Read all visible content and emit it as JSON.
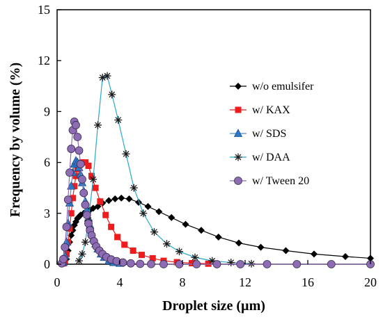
{
  "chart_data": {
    "type": "line",
    "xlabel": "Droplet size (µm)",
    "ylabel": "Frequency by volume (%)",
    "xlim": [
      0,
      20
    ],
    "ylim": [
      0,
      15
    ],
    "xticks": [
      0,
      4,
      8,
      12,
      16,
      20
    ],
    "yticks": [
      0,
      3,
      6,
      9,
      12,
      15
    ],
    "grid": false,
    "legend_position": "right",
    "series": [
      {
        "name": "w/o emulsifer",
        "marker": "diamond",
        "color": "#000000",
        "line_color": "#000000",
        "x": [
          0.6,
          0.7,
          0.8,
          0.9,
          1.0,
          1.1,
          1.2,
          1.3,
          1.4,
          1.5,
          1.7,
          1.9,
          2.1,
          2.3,
          2.6,
          2.9,
          3.3,
          3.7,
          4.1,
          4.6,
          5.2,
          5.8,
          6.5,
          7.3,
          8.2,
          9.2,
          10.3,
          11.6,
          13.0,
          14.6,
          16.4,
          18.4,
          20.6
        ],
        "y": [
          0.3,
          0.8,
          1.3,
          1.7,
          2.0,
          2.3,
          2.5,
          2.7,
          2.8,
          2.9,
          3.0,
          3.1,
          3.2,
          3.3,
          3.4,
          3.6,
          3.75,
          3.85,
          3.9,
          3.85,
          3.65,
          3.4,
          3.1,
          2.75,
          2.35,
          2.0,
          1.6,
          1.25,
          1.0,
          0.8,
          0.6,
          0.45,
          0.35
        ]
      },
      {
        "name": "w/ KAX",
        "marker": "square",
        "color": "#ee1c1c",
        "line_color": "#ee1c1c",
        "x": [
          0.4,
          0.5,
          0.6,
          0.7,
          0.8,
          0.9,
          1.0,
          1.1,
          1.2,
          1.3,
          1.45,
          1.6,
          1.8,
          2.0,
          2.2,
          2.45,
          2.75,
          3.1,
          3.45,
          3.85,
          4.3,
          4.85,
          5.4,
          6.1,
          6.8,
          7.65,
          8.6,
          9.65
        ],
        "y": [
          0.05,
          0.2,
          0.6,
          1.3,
          2.1,
          3.0,
          3.9,
          4.6,
          5.2,
          5.6,
          5.9,
          6.0,
          6.0,
          5.8,
          5.2,
          4.5,
          3.7,
          2.9,
          2.2,
          1.6,
          1.15,
          0.8,
          0.55,
          0.35,
          0.2,
          0.12,
          0.06,
          0.03
        ]
      },
      {
        "name": "w/ SDS",
        "marker": "triangle",
        "color": "#2e78c7",
        "line_color": "#4a8fd6",
        "x": [
          0.4,
          0.5,
          0.6,
          0.7,
          0.8,
          0.9,
          1.0,
          1.1,
          1.2,
          1.3,
          1.4,
          1.5,
          1.6,
          1.7,
          1.8,
          1.9,
          2.0,
          2.1,
          2.2,
          2.3,
          2.45,
          2.6,
          2.8,
          3.0,
          3.3,
          3.6,
          4.0
        ],
        "y": [
          0.1,
          0.5,
          1.3,
          2.4,
          3.6,
          4.6,
          5.4,
          5.9,
          6.1,
          6.0,
          5.7,
          5.3,
          4.8,
          4.3,
          3.7,
          3.2,
          2.7,
          2.3,
          1.9,
          1.5,
          1.2,
          0.9,
          0.6,
          0.4,
          0.2,
          0.1,
          0.05
        ]
      },
      {
        "name": "w/ DAA",
        "marker": "asterisk",
        "color": "#1a1a1a",
        "line_color": "#2ba7c9",
        "x": [
          1.4,
          1.6,
          1.8,
          2.0,
          2.3,
          2.6,
          2.9,
          3.2,
          3.5,
          3.9,
          4.4,
          4.9,
          5.5,
          6.2,
          7.0,
          7.8,
          8.8,
          9.9,
          11.1,
          12.4
        ],
        "y": [
          0.2,
          0.6,
          1.3,
          2.6,
          5.0,
          8.2,
          11.0,
          11.1,
          10.0,
          8.5,
          6.5,
          4.5,
          3.0,
          1.9,
          1.2,
          0.75,
          0.4,
          0.2,
          0.1,
          0.03
        ]
      },
      {
        "name": "w/ Tween 20",
        "marker": "circle",
        "color": "#8e6cb3",
        "line_color": "#8e6cb3",
        "x": [
          0.3,
          0.4,
          0.5,
          0.6,
          0.7,
          0.8,
          0.9,
          1.0,
          1.1,
          1.2,
          1.3,
          1.4,
          1.5,
          1.6,
          1.7,
          1.8,
          1.9,
          2.0,
          2.1,
          2.2,
          2.35,
          2.5,
          2.7,
          2.9,
          3.15,
          3.45,
          3.8,
          4.2,
          4.7,
          5.3,
          6.0,
          6.8,
          7.8,
          8.9,
          10.2,
          11.7,
          13.4,
          15.3,
          17.5,
          20.0
        ],
        "y": [
          0.05,
          0.3,
          1.0,
          2.2,
          3.8,
          5.4,
          6.8,
          7.9,
          8.4,
          8.2,
          7.5,
          6.7,
          5.9,
          5.0,
          4.2,
          3.5,
          2.9,
          2.4,
          2.0,
          1.7,
          1.35,
          1.05,
          0.8,
          0.6,
          0.42,
          0.28,
          0.18,
          0.1,
          0.05,
          0.02,
          0.01,
          0,
          0,
          0,
          0,
          0,
          0,
          0,
          0,
          0
        ]
      }
    ]
  }
}
